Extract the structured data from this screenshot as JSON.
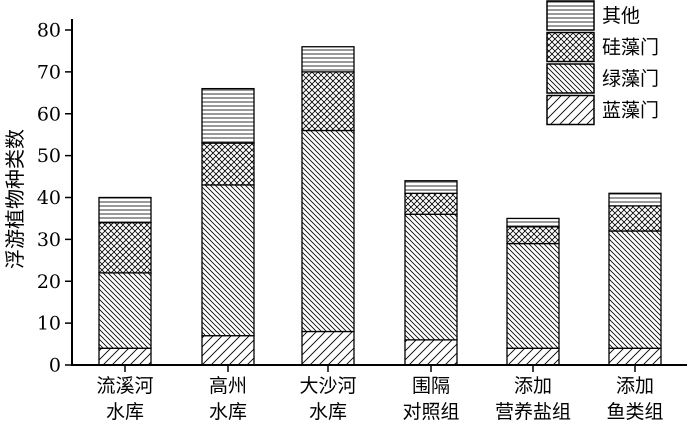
{
  "chart_data": {
    "type": "bar",
    "stacked": true,
    "ylabel": "浮游植物种类数",
    "ylim": [
      0,
      80
    ],
    "yticks": [
      0,
      10,
      20,
      30,
      40,
      50,
      60,
      70,
      80
    ],
    "categories": [
      [
        "流溪河",
        "水库"
      ],
      [
        "高州",
        "水库"
      ],
      [
        "大沙河",
        "水库"
      ],
      [
        "围隔",
        "对照组"
      ],
      [
        "添加",
        "营养盐组"
      ],
      [
        "添加",
        "鱼类组"
      ]
    ],
    "series": [
      {
        "name": "蓝藻门",
        "pattern": "hatch-fwd-wide",
        "values": [
          4,
          7,
          8,
          6,
          4,
          4
        ]
      },
      {
        "name": "绿藻门",
        "pattern": "hatch-back-dense",
        "values": [
          18,
          36,
          48,
          30,
          25,
          28
        ]
      },
      {
        "name": "硅藻门",
        "pattern": "crosshatch",
        "values": [
          12,
          10,
          14,
          5,
          4,
          6
        ]
      },
      {
        "name": "其他",
        "pattern": "horizontal",
        "values": [
          6,
          13,
          6,
          3,
          2,
          3
        ]
      }
    ],
    "legend_position": "top-right",
    "grid": false
  }
}
